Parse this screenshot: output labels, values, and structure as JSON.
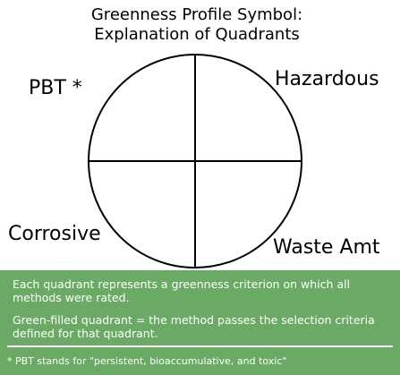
{
  "title": {
    "line1": "Greenness Profile Symbol:",
    "line2": "Explanation of Quadrants"
  },
  "quadrants": {
    "top_left": "PBT *",
    "top_right": "Hazardous",
    "bottom_left": "Corrosive",
    "bottom_right": "Waste Amt"
  },
  "explanation": {
    "paragraph1": "Each quadrant represents a greenness criterion on which all methods were rated.",
    "paragraph2": "Green-filled quadrant = the method passes the selection criteria defined for that quadrant."
  },
  "footnote": "* PBT stands for \"persistent, bioaccumulative, and toxic\"",
  "colors": {
    "panel_background": "#6aaa64",
    "panel_text": "#ffffff",
    "circle_stroke": "#000000"
  }
}
